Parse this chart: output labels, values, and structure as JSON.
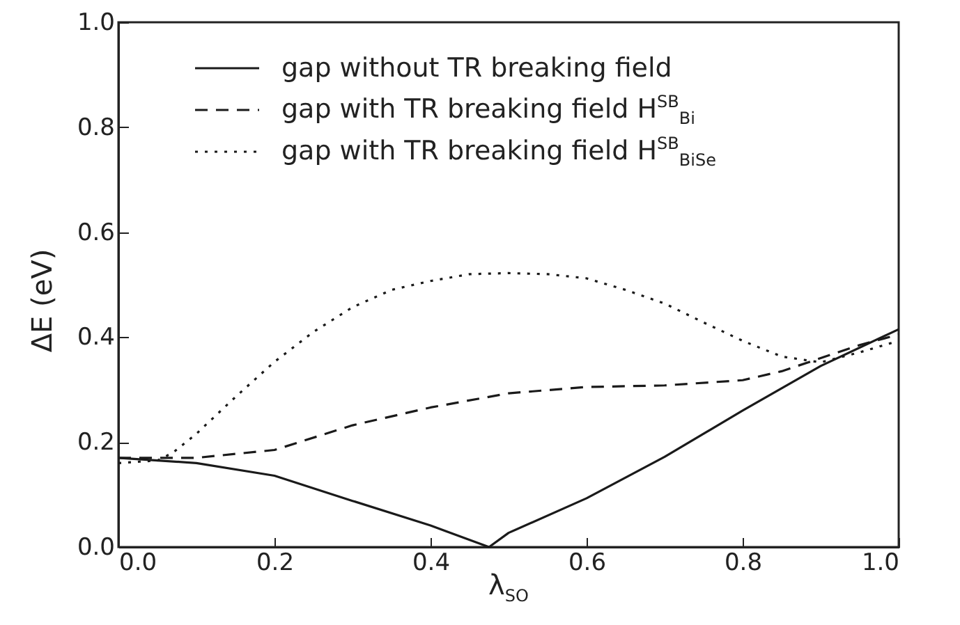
{
  "chart_data": {
    "type": "line",
    "xlabel": "λ$_{SO}$",
    "ylabel": "ΔE (eV)",
    "xlim": [
      0,
      1
    ],
    "ylim": [
      0,
      1
    ],
    "xticks": [
      {
        "value": 0,
        "label": "0.0"
      },
      {
        "value": 0.2,
        "label": "0.2"
      },
      {
        "value": 0.4,
        "label": "0.4"
      },
      {
        "value": 0.6,
        "label": "0.6"
      },
      {
        "value": 0.8,
        "label": "0.8"
      },
      {
        "value": 1,
        "label": "1.0"
      }
    ],
    "yticks": [
      {
        "value": 0,
        "label": "0.0"
      },
      {
        "value": 0.2,
        "label": "0.2"
      },
      {
        "value": 0.4,
        "label": "0.4"
      },
      {
        "value": 0.6,
        "label": "0.6"
      },
      {
        "value": 0.8,
        "label": "0.8"
      },
      {
        "value": 1,
        "label": "1.0"
      }
    ],
    "legend": "top",
    "grid": false,
    "marker": "none",
    "series": [
      {
        "name": "gap without TR breaking field",
        "color": "#1a1a1a",
        "line_style": "solid",
        "x": [
          0,
          0.1,
          0.2,
          0.3,
          0.4,
          0.475,
          0.5,
          0.6,
          0.7,
          0.8,
          0.9,
          1.0
        ],
        "values": [
          0.17,
          0.16,
          0.136,
          0.088,
          0.041,
          0,
          0.027,
          0.093,
          0.172,
          0.26,
          0.345,
          0.415
        ]
      },
      {
        "name": "gap with TR breaking field H$^{SB}$$_{Bi}$",
        "color": "#1a1a1a",
        "line_style": "dashed",
        "x": [
          0,
          0.1,
          0.2,
          0.3,
          0.4,
          0.5,
          0.6,
          0.7,
          0.8,
          0.85,
          0.9,
          0.95,
          1.0
        ],
        "values": [
          0.17,
          0.17,
          0.185,
          0.232,
          0.266,
          0.293,
          0.305,
          0.308,
          0.318,
          0.335,
          0.36,
          0.385,
          0.405
        ]
      },
      {
        "name": "gap with TR breaking field H$^{SB}$$_{BiSe}$",
        "color": "#1a1a1a",
        "line_style": "dotted",
        "x": [
          0,
          0.05,
          0.07,
          0.1,
          0.15,
          0.2,
          0.25,
          0.3,
          0.35,
          0.4,
          0.45,
          0.5,
          0.55,
          0.6,
          0.65,
          0.7,
          0.75,
          0.8,
          0.85,
          0.9,
          0.95,
          1.0
        ],
        "values": [
          0.16,
          0.165,
          0.18,
          0.216,
          0.286,
          0.353,
          0.41,
          0.457,
          0.49,
          0.507,
          0.52,
          0.522,
          0.52,
          0.512,
          0.49,
          0.464,
          0.428,
          0.393,
          0.363,
          0.352,
          0.371,
          0.393
        ]
      }
    ]
  }
}
